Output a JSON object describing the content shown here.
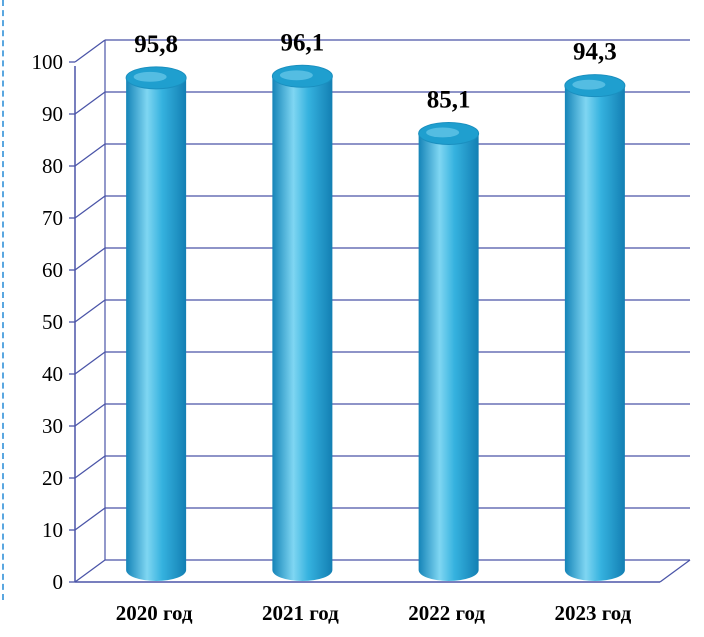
{
  "chart_data": {
    "type": "bar",
    "style": "3d-cylinder",
    "categories": [
      "2020 год",
      "2021 год",
      "2022 год",
      "2023 год"
    ],
    "values": [
      95.8,
      96.1,
      85.1,
      94.3
    ],
    "value_labels": [
      "95,8",
      "96,1",
      "85,1",
      "94,3"
    ],
    "ylim": [
      0,
      100
    ],
    "yticks": [
      "0",
      "10",
      "20",
      "30",
      "40",
      "50",
      "60",
      "70",
      "80",
      "90",
      "100"
    ],
    "grid": true,
    "colors": {
      "bar": "#2aa6d6",
      "bar_light": "#7fd6f2",
      "bar_top": "#1f9fcf",
      "grid": "#4b55a8"
    }
  }
}
